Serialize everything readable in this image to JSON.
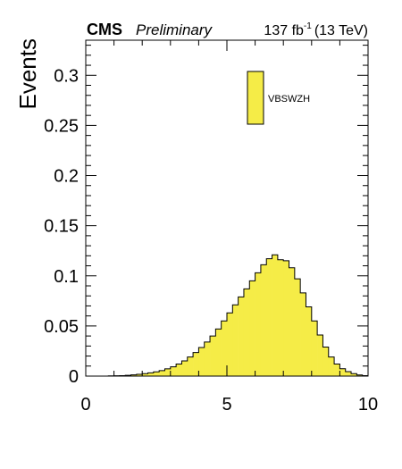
{
  "header": {
    "experiment": "CMS",
    "status": "Preliminary",
    "luminosity_prefix": "137 fb",
    "luminosity_exponent": "-1",
    "energy": "(13 TeV)"
  },
  "colors": {
    "fill": "#f5ec47",
    "edge": "#000000",
    "background": "#ffffff"
  },
  "chart_data": {
    "type": "bar",
    "title": "",
    "xlabel": "",
    "ylabel": "Events",
    "xlim": [
      0,
      10
    ],
    "ylim": [
      0,
      0.335
    ],
    "x_ticks": [
      0,
      5,
      10
    ],
    "x_tick_labels": [
      "0",
      "5",
      "10"
    ],
    "y_ticks": [
      0,
      0.05,
      0.1,
      0.15,
      0.2,
      0.25,
      0.3
    ],
    "y_tick_labels": [
      "0",
      "0.05",
      "0.1",
      "0.15",
      "0.2",
      "0.25",
      "0.3"
    ],
    "legend_position": "top-right",
    "bin_edges": [
      0,
      0.2,
      0.4,
      0.6,
      0.8,
      1.0,
      1.2,
      1.4,
      1.6,
      1.8,
      2.0,
      2.2,
      2.4,
      2.6,
      2.8,
      3.0,
      3.2,
      3.4,
      3.6,
      3.8,
      4.0,
      4.2,
      4.4,
      4.6,
      4.8,
      5.0,
      5.2,
      5.4,
      5.6,
      5.8,
      6.0,
      6.2,
      6.4,
      6.6,
      6.8,
      7.0,
      7.2,
      7.4,
      7.6,
      7.8,
      8.0,
      8.2,
      8.4,
      8.6,
      8.8,
      9.0,
      9.2,
      9.4,
      9.6,
      9.8,
      10.0
    ],
    "series": [
      {
        "name": "VBSWZH",
        "values": [
          0,
          0,
          0,
          0,
          0.0002,
          0.0003,
          0.0005,
          0.0008,
          0.0012,
          0.0018,
          0.0024,
          0.0032,
          0.0042,
          0.0055,
          0.0072,
          0.0092,
          0.012,
          0.0152,
          0.019,
          0.0235,
          0.0285,
          0.034,
          0.04,
          0.047,
          0.055,
          0.063,
          0.071,
          0.079,
          0.087,
          0.095,
          0.103,
          0.111,
          0.117,
          0.121,
          0.116,
          0.115,
          0.108,
          0.097,
          0.083,
          0.069,
          0.055,
          0.041,
          0.029,
          0.019,
          0.012,
          0.0073,
          0.0045,
          0.0025,
          0.0011,
          0.0004
        ]
      }
    ]
  }
}
